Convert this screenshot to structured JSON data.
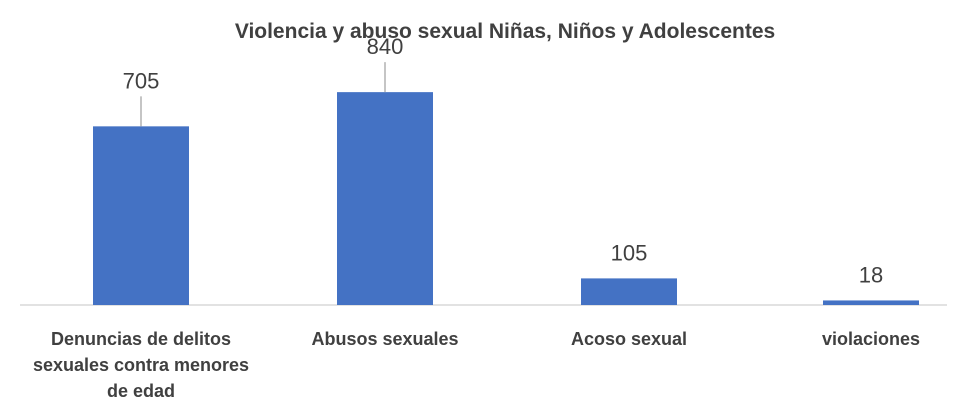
{
  "chart_data": {
    "type": "bar",
    "title": "Violencia y abuso sexual Niñas, Niños y Adolescentes",
    "categories": [
      [
        "Denuncias de delitos",
        "sexuales contra menores",
        "de edad"
      ],
      [
        "Abusos sexuales"
      ],
      [
        "Acoso sexual"
      ],
      [
        "violaciones"
      ]
    ],
    "values": [
      705,
      840,
      105,
      18
    ],
    "data_labels": [
      "705",
      "840",
      "105",
      "18"
    ],
    "bar_color": "#4472C4",
    "leader_line_color": "#A6A6A6",
    "axis_color": "#D9D9D9",
    "ylim": [
      0,
      880
    ],
    "grid": false,
    "legend": "none"
  }
}
